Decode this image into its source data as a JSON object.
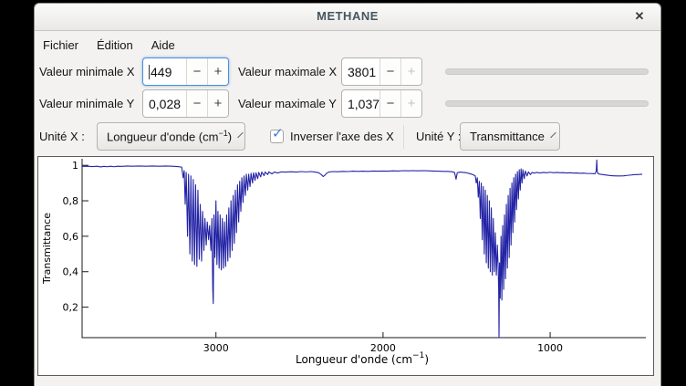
{
  "window": {
    "title": "METHANE",
    "close_icon": "✕"
  },
  "menu": {
    "items": {
      "file": "Fichier",
      "edit": "Édition",
      "help": "Aide"
    }
  },
  "controls": {
    "minus_glyph": "−",
    "plus_glyph": "+",
    "min_x": {
      "label": "Valeur minimale X",
      "value": "449"
    },
    "max_x": {
      "label": "Valeur maximale X",
      "value": "3801"
    },
    "min_y": {
      "label": "Valeur minimale Y",
      "value": "0,028"
    },
    "max_y": {
      "label": "Valeur maximale Y",
      "value": "1,037"
    },
    "unit_x": {
      "label": "Unité X :",
      "value_pre": "Longueur d'onde (cm",
      "value_sup": "−1",
      "value_post": ")"
    },
    "invert_x": {
      "label": "Inverser l'axe des X",
      "checked": true,
      "check_glyph": "✓"
    },
    "unit_y": {
      "label": "Unité Y :",
      "value": "Transmittance"
    }
  },
  "colors": {
    "accent": "#4a90d9",
    "curve": "#2323a5",
    "axis": "#1a1a1a",
    "title_text": "#45555e"
  },
  "chart_data": {
    "type": "line",
    "xlabel_pre": "Longueur d'onde (cm",
    "xlabel_sup": "−1",
    "xlabel_post": ")",
    "ylabel": "Transmittance",
    "x_range": [
      3801,
      449
    ],
    "x_inverted": true,
    "y_range": [
      0.028,
      1.037
    ],
    "grid": false,
    "x_ticks": [
      {
        "v": 3000,
        "label": "3000"
      },
      {
        "v": 2000,
        "label": "2000"
      },
      {
        "v": 1000,
        "label": "1000"
      }
    ],
    "y_ticks": [
      {
        "v": 1.0,
        "label": "1"
      },
      {
        "v": 0.8,
        "label": "0,8"
      },
      {
        "v": 0.6,
        "label": "0,6"
      },
      {
        "v": 0.4,
        "label": "0,4"
      },
      {
        "v": 0.2,
        "label": "0,2"
      }
    ],
    "line_color": "#2323a5",
    "points": [
      [
        3801,
        0.994
      ],
      [
        3770,
        0.995
      ],
      [
        3740,
        0.993
      ],
      [
        3710,
        0.995
      ],
      [
        3690,
        0.991
      ],
      [
        3670,
        0.994
      ],
      [
        3650,
        0.992
      ],
      [
        3630,
        0.995
      ],
      [
        3610,
        0.992
      ],
      [
        3590,
        0.995
      ],
      [
        3560,
        0.994
      ],
      [
        3530,
        0.996
      ],
      [
        3500,
        0.995
      ],
      [
        3460,
        0.996
      ],
      [
        3420,
        0.995
      ],
      [
        3380,
        0.996
      ],
      [
        3340,
        0.995
      ],
      [
        3300,
        0.996
      ],
      [
        3260,
        0.995
      ],
      [
        3230,
        0.993
      ],
      [
        3205,
        0.99
      ],
      [
        3196,
        0.93
      ],
      [
        3190,
        0.97
      ],
      [
        3184,
        0.78
      ],
      [
        3178,
        0.96
      ],
      [
        3170,
        0.6
      ],
      [
        3164,
        0.95
      ],
      [
        3156,
        0.5
      ],
      [
        3150,
        0.94
      ],
      [
        3142,
        0.46
      ],
      [
        3136,
        0.92
      ],
      [
        3128,
        0.44
      ],
      [
        3122,
        0.89
      ],
      [
        3114,
        0.43
      ],
      [
        3108,
        0.86
      ],
      [
        3100,
        0.47
      ],
      [
        3094,
        0.78
      ],
      [
        3086,
        0.46
      ],
      [
        3080,
        0.74
      ],
      [
        3072,
        0.52
      ],
      [
        3066,
        0.7
      ],
      [
        3058,
        0.55
      ],
      [
        3052,
        0.68
      ],
      [
        3044,
        0.58
      ],
      [
        3038,
        0.66
      ],
      [
        3030,
        0.52
      ],
      [
        3024,
        0.7
      ],
      [
        3019,
        0.3
      ],
      [
        3016,
        0.22
      ],
      [
        3012,
        0.72
      ],
      [
        3006,
        0.48
      ],
      [
        3000,
        0.8
      ],
      [
        2994,
        0.44
      ],
      [
        2988,
        0.74
      ],
      [
        2981,
        0.42
      ],
      [
        2975,
        0.72
      ],
      [
        2968,
        0.41
      ],
      [
        2962,
        0.7
      ],
      [
        2955,
        0.42
      ],
      [
        2949,
        0.68
      ],
      [
        2942,
        0.43
      ],
      [
        2936,
        0.72
      ],
      [
        2929,
        0.46
      ],
      [
        2923,
        0.76
      ],
      [
        2916,
        0.48
      ],
      [
        2910,
        0.8
      ],
      [
        2903,
        0.52
      ],
      [
        2897,
        0.83
      ],
      [
        2890,
        0.56
      ],
      [
        2884,
        0.86
      ],
      [
        2877,
        0.62
      ],
      [
        2871,
        0.89
      ],
      [
        2864,
        0.68
      ],
      [
        2858,
        0.91
      ],
      [
        2851,
        0.74
      ],
      [
        2845,
        0.93
      ],
      [
        2838,
        0.79
      ],
      [
        2832,
        0.94
      ],
      [
        2824,
        0.83
      ],
      [
        2818,
        0.95
      ],
      [
        2810,
        0.86
      ],
      [
        2804,
        0.95
      ],
      [
        2796,
        0.88
      ],
      [
        2790,
        0.955
      ],
      [
        2781,
        0.9
      ],
      [
        2775,
        0.958
      ],
      [
        2766,
        0.915
      ],
      [
        2760,
        0.958
      ],
      [
        2750,
        0.925
      ],
      [
        2744,
        0.96
      ],
      [
        2732,
        0.935
      ],
      [
        2726,
        0.962
      ],
      [
        2712,
        0.942
      ],
      [
        2706,
        0.962
      ],
      [
        2690,
        0.948
      ],
      [
        2684,
        0.963
      ],
      [
        2665,
        0.952
      ],
      [
        2650,
        0.962
      ],
      [
        2630,
        0.957
      ],
      [
        2610,
        0.963
      ],
      [
        2580,
        0.962
      ],
      [
        2550,
        0.964
      ],
      [
        2520,
        0.962
      ],
      [
        2490,
        0.965
      ],
      [
        2460,
        0.963
      ],
      [
        2430,
        0.965
      ],
      [
        2405,
        0.962
      ],
      [
        2385,
        0.958
      ],
      [
        2370,
        0.948
      ],
      [
        2358,
        0.937
      ],
      [
        2348,
        0.944
      ],
      [
        2338,
        0.955
      ],
      [
        2325,
        0.962
      ],
      [
        2300,
        0.965
      ],
      [
        2270,
        0.964
      ],
      [
        2240,
        0.966
      ],
      [
        2210,
        0.965
      ],
      [
        2180,
        0.967
      ],
      [
        2150,
        0.966
      ],
      [
        2120,
        0.967
      ],
      [
        2090,
        0.966
      ],
      [
        2060,
        0.968
      ],
      [
        2030,
        0.967
      ],
      [
        2000,
        0.968
      ],
      [
        1970,
        0.967
      ],
      [
        1940,
        0.969
      ],
      [
        1910,
        0.968
      ],
      [
        1880,
        0.97
      ],
      [
        1850,
        0.969
      ],
      [
        1820,
        0.97
      ],
      [
        1790,
        0.969
      ],
      [
        1760,
        0.97
      ],
      [
        1730,
        0.969
      ],
      [
        1700,
        0.968
      ],
      [
        1670,
        0.967
      ],
      [
        1640,
        0.966
      ],
      [
        1615,
        0.966
      ],
      [
        1590,
        0.964
      ],
      [
        1572,
        0.96
      ],
      [
        1563,
        0.922
      ],
      [
        1556,
        0.958
      ],
      [
        1540,
        0.962
      ],
      [
        1520,
        0.96
      ],
      [
        1500,
        0.958
      ],
      [
        1480,
        0.953
      ],
      [
        1460,
        0.947
      ],
      [
        1448,
        0.94
      ],
      [
        1442,
        0.9
      ],
      [
        1436,
        0.93
      ],
      [
        1430,
        0.82
      ],
      [
        1424,
        0.91
      ],
      [
        1418,
        0.7
      ],
      [
        1412,
        0.9
      ],
      [
        1406,
        0.58
      ],
      [
        1400,
        0.88
      ],
      [
        1394,
        0.5
      ],
      [
        1388,
        0.86
      ],
      [
        1382,
        0.45
      ],
      [
        1376,
        0.83
      ],
      [
        1370,
        0.42
      ],
      [
        1364,
        0.8
      ],
      [
        1358,
        0.4
      ],
      [
        1352,
        0.76
      ],
      [
        1346,
        0.38
      ],
      [
        1340,
        0.7
      ],
      [
        1334,
        0.4
      ],
      [
        1328,
        0.62
      ],
      [
        1322,
        0.38
      ],
      [
        1316,
        0.55
      ],
      [
        1311,
        0.42
      ],
      [
        1308,
        0.3
      ],
      [
        1306,
        0.028
      ],
      [
        1303,
        0.45
      ],
      [
        1299,
        0.25
      ],
      [
        1294,
        0.6
      ],
      [
        1289,
        0.24
      ],
      [
        1284,
        0.66
      ],
      [
        1278,
        0.3
      ],
      [
        1273,
        0.72
      ],
      [
        1267,
        0.36
      ],
      [
        1262,
        0.78
      ],
      [
        1256,
        0.42
      ],
      [
        1251,
        0.83
      ],
      [
        1245,
        0.48
      ],
      [
        1240,
        0.87
      ],
      [
        1234,
        0.55
      ],
      [
        1229,
        0.9
      ],
      [
        1223,
        0.62
      ],
      [
        1218,
        0.93
      ],
      [
        1212,
        0.68
      ],
      [
        1207,
        0.95
      ],
      [
        1201,
        0.75
      ],
      [
        1196,
        0.965
      ],
      [
        1190,
        0.81
      ],
      [
        1185,
        0.975
      ],
      [
        1179,
        0.86
      ],
      [
        1174,
        0.98
      ],
      [
        1168,
        0.9
      ],
      [
        1163,
        0.975
      ],
      [
        1155,
        0.925
      ],
      [
        1148,
        0.968
      ],
      [
        1138,
        0.94
      ],
      [
        1130,
        0.963
      ],
      [
        1118,
        0.948
      ],
      [
        1108,
        0.96
      ],
      [
        1095,
        0.956
      ],
      [
        1080,
        0.96
      ],
      [
        1060,
        0.957
      ],
      [
        1040,
        0.96
      ],
      [
        1020,
        0.958
      ],
      [
        1000,
        0.961
      ],
      [
        980,
        0.958
      ],
      [
        960,
        0.96
      ],
      [
        940,
        0.958
      ],
      [
        920,
        0.959
      ],
      [
        900,
        0.957
      ],
      [
        880,
        0.958
      ],
      [
        860,
        0.956
      ],
      [
        840,
        0.957
      ],
      [
        820,
        0.955
      ],
      [
        800,
        0.956
      ],
      [
        780,
        0.954
      ],
      [
        760,
        0.954
      ],
      [
        745,
        0.953
      ],
      [
        730,
        0.953
      ],
      [
        724,
        0.97
      ],
      [
        721,
        1.03
      ],
      [
        718,
        0.965
      ],
      [
        712,
        0.952
      ],
      [
        700,
        0.95
      ],
      [
        685,
        0.948
      ],
      [
        670,
        0.946
      ],
      [
        655,
        0.944
      ],
      [
        640,
        0.942
      ],
      [
        620,
        0.941
      ],
      [
        600,
        0.94
      ],
      [
        580,
        0.94
      ],
      [
        560,
        0.941
      ],
      [
        540,
        0.943
      ],
      [
        520,
        0.945
      ],
      [
        500,
        0.947
      ],
      [
        480,
        0.948
      ],
      [
        460,
        0.949
      ],
      [
        449,
        0.95
      ]
    ]
  }
}
